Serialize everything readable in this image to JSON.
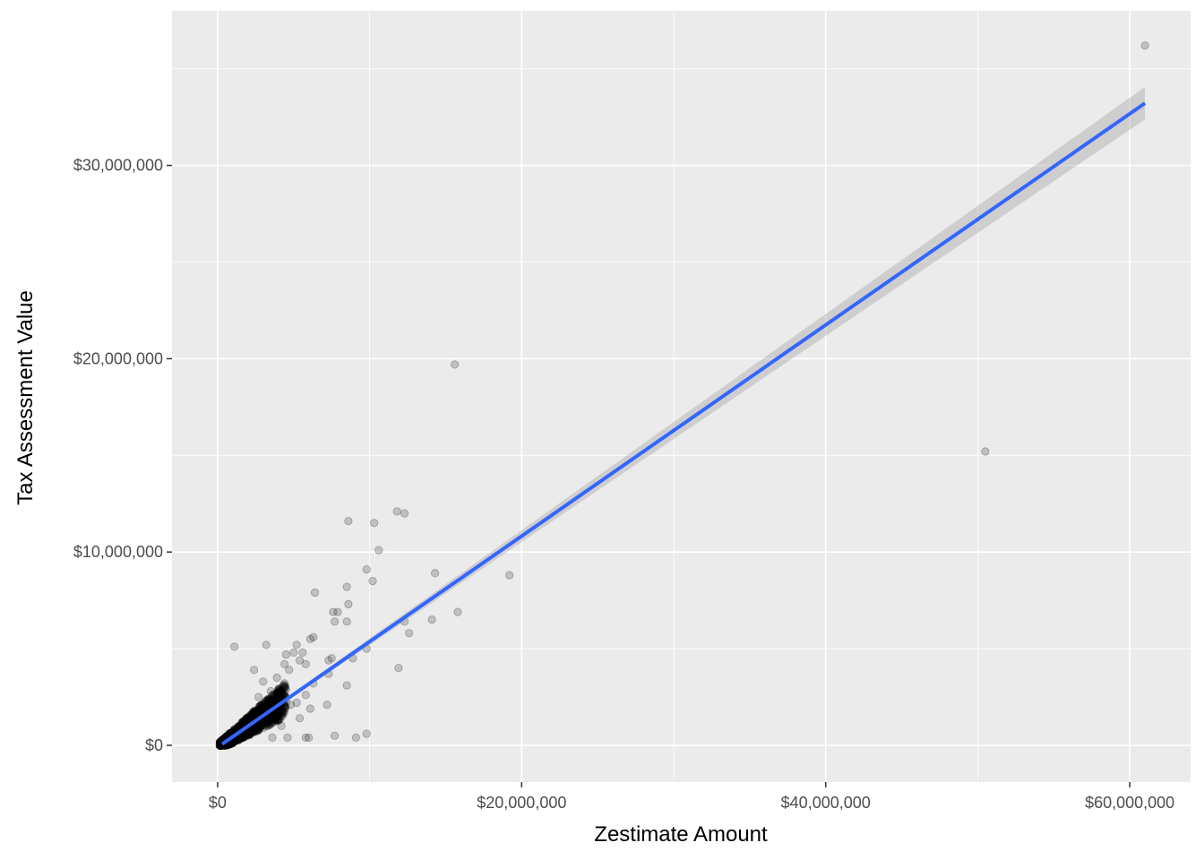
{
  "chart_data": {
    "type": "scatter",
    "xlabel": "Zestimate Amount",
    "ylabel": "Tax Assessment Value",
    "xlim": [
      -3000000,
      64000000
    ],
    "ylim": [
      -1900000,
      38000000
    ],
    "x_ticks": [
      0,
      20000000,
      40000000,
      60000000
    ],
    "x_tick_labels": [
      "$0",
      "$20,000,000",
      "$40,000,000",
      "$60,000,000"
    ],
    "y_ticks": [
      0,
      10000000,
      20000000,
      30000000
    ],
    "y_tick_labels": [
      "$0",
      "$10,000,000",
      "$20,000,000",
      "$30,000,000"
    ],
    "grid": true,
    "point_color": "#000000",
    "point_alpha": 0.18,
    "background_color": "#ebebeb",
    "grid_color": "#ffffff",
    "series": [
      {
        "type": "scatter",
        "points": [
          [
            61000000,
            36200000
          ],
          [
            50500000,
            15200000
          ],
          [
            15600000,
            19700000
          ],
          [
            19200000,
            8800000
          ],
          [
            15800000,
            6900000
          ],
          [
            14300000,
            8900000
          ],
          [
            14100000,
            6500000
          ],
          [
            11800000,
            12100000
          ],
          [
            12300000,
            12000000
          ],
          [
            10300000,
            11500000
          ],
          [
            8600000,
            11600000
          ],
          [
            10600000,
            10100000
          ],
          [
            12600000,
            5800000
          ],
          [
            12300000,
            6400000
          ],
          [
            11900000,
            4000000
          ],
          [
            9800000,
            9100000
          ],
          [
            10200000,
            8500000
          ],
          [
            9800000,
            5000000
          ],
          [
            9800000,
            600000
          ],
          [
            9100000,
            400000
          ],
          [
            8600000,
            7300000
          ],
          [
            8500000,
            8200000
          ],
          [
            8500000,
            6400000
          ],
          [
            8900000,
            4500000
          ],
          [
            8500000,
            3100000
          ],
          [
            7600000,
            6900000
          ],
          [
            7700000,
            6400000
          ],
          [
            7900000,
            6900000
          ],
          [
            6400000,
            7900000
          ],
          [
            7300000,
            4400000
          ],
          [
            7500000,
            4500000
          ],
          [
            7300000,
            3700000
          ],
          [
            7200000,
            2100000
          ],
          [
            7700000,
            500000
          ],
          [
            6300000,
            5600000
          ],
          [
            6100000,
            5500000
          ],
          [
            6300000,
            3200000
          ],
          [
            6000000,
            400000
          ],
          [
            5800000,
            400000
          ],
          [
            5200000,
            5200000
          ],
          [
            5000000,
            4800000
          ],
          [
            5600000,
            4800000
          ],
          [
            5400000,
            4400000
          ],
          [
            5800000,
            4200000
          ],
          [
            4500000,
            4700000
          ],
          [
            4700000,
            3900000
          ],
          [
            5200000,
            2200000
          ],
          [
            5800000,
            2600000
          ],
          [
            6100000,
            1900000
          ],
          [
            5400000,
            1400000
          ],
          [
            4800000,
            2100000
          ],
          [
            4400000,
            4200000
          ],
          [
            3200000,
            5200000
          ],
          [
            1100000,
            5100000
          ],
          [
            2400000,
            3900000
          ],
          [
            3900000,
            3500000
          ],
          [
            4400000,
            3200000
          ],
          [
            3500000,
            2800000
          ],
          [
            4000000,
            2500000
          ],
          [
            3300000,
            1300000
          ],
          [
            4200000,
            1000000
          ],
          [
            4600000,
            400000
          ],
          [
            3600000,
            400000
          ],
          [
            3900000,
            1700000
          ],
          [
            3000000,
            3300000
          ],
          [
            2700000,
            2500000
          ],
          [
            2500000,
            1200000
          ]
        ]
      },
      {
        "type": "dense-cluster",
        "note": "Several thousand overlapping points at low values",
        "x_range": [
          150000,
          4500000
        ],
        "y_range": [
          0,
          3500000
        ]
      },
      {
        "type": "regression-line",
        "method": "linear",
        "color": "#3366ff",
        "ribbon_color": "#999999",
        "x_start": 300000,
        "x_end": 61000000,
        "intercept": -100000,
        "slope": 0.5462
      }
    ]
  }
}
